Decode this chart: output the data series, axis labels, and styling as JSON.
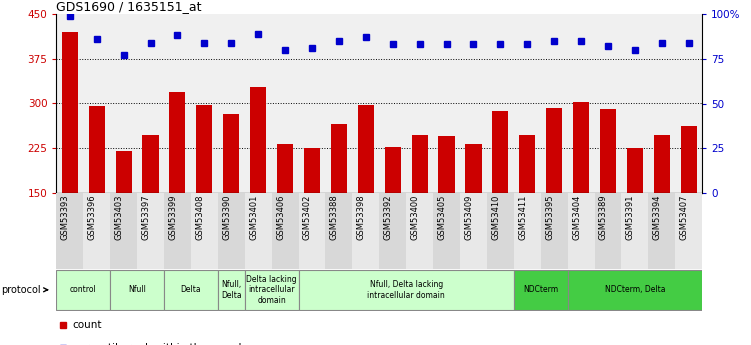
{
  "title": "GDS1690 / 1635151_at",
  "samples": [
    "GSM53393",
    "GSM53396",
    "GSM53403",
    "GSM53397",
    "GSM53399",
    "GSM53408",
    "GSM53390",
    "GSM53401",
    "GSM53406",
    "GSM53402",
    "GSM53388",
    "GSM53398",
    "GSM53392",
    "GSM53400",
    "GSM53405",
    "GSM53409",
    "GSM53410",
    "GSM53411",
    "GSM53395",
    "GSM53404",
    "GSM53389",
    "GSM53391",
    "GSM53394",
    "GSM53407"
  ],
  "counts": [
    420,
    296,
    220,
    248,
    320,
    297,
    283,
    327,
    232,
    226,
    265,
    298,
    227,
    248,
    245,
    233,
    288,
    247,
    292,
    303,
    290,
    226,
    248,
    262
  ],
  "percentiles": [
    99,
    86,
    77,
    84,
    88,
    84,
    84,
    89,
    80,
    81,
    85,
    87,
    83,
    83,
    83,
    83,
    83,
    83,
    85,
    85,
    82,
    80,
    84,
    84
  ],
  "ylim_left": [
    150,
    450
  ],
  "ylim_right": [
    0,
    100
  ],
  "yticks_left": [
    150,
    225,
    300,
    375,
    450
  ],
  "yticks_right": [
    0,
    25,
    50,
    75,
    100
  ],
  "bar_color": "#cc0000",
  "dot_color": "#0000cc",
  "protocol_groups": [
    {
      "label": "control",
      "start": 0,
      "end": 2,
      "color": "#ccffcc"
    },
    {
      "label": "Nfull",
      "start": 2,
      "end": 4,
      "color": "#ccffcc"
    },
    {
      "label": "Delta",
      "start": 4,
      "end": 6,
      "color": "#ccffcc"
    },
    {
      "label": "Nfull,\nDelta",
      "start": 6,
      "end": 7,
      "color": "#ccffcc"
    },
    {
      "label": "Delta lacking\nintracellular\ndomain",
      "start": 7,
      "end": 9,
      "color": "#ccffcc"
    },
    {
      "label": "Nfull, Delta lacking\nintracellular domain",
      "start": 9,
      "end": 17,
      "color": "#ccffcc"
    },
    {
      "label": "NDCterm",
      "start": 17,
      "end": 19,
      "color": "#44cc44"
    },
    {
      "label": "NDCterm, Delta",
      "start": 19,
      "end": 24,
      "color": "#44cc44"
    }
  ],
  "bg_color": "#ffffff",
  "ax_bg_color": "#f0f0f0"
}
